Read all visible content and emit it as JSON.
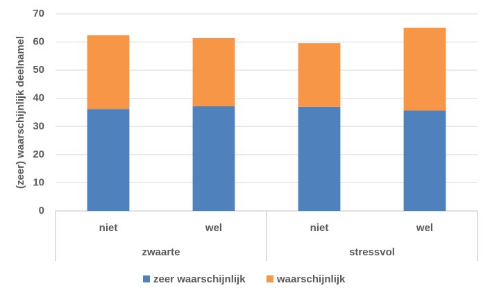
{
  "chart_data": {
    "type": "stacked_bar",
    "y_label": "(zeer) waarschijnlijk deelnamel",
    "groups": [
      "zwaarte",
      "stressvol"
    ],
    "categories": [
      "niet",
      "wel",
      "niet",
      "wel"
    ],
    "series": [
      {
        "name": "zeer waarschijnlijk",
        "color": "#4f81bd",
        "values": [
          36.2,
          37.2,
          37.0,
          35.7
        ]
      },
      {
        "name": "waarschijnlijk",
        "color": "#f79646",
        "values": [
          26.2,
          24.2,
          22.6,
          29.4
        ]
      }
    ],
    "ylim": [
      0,
      70
    ],
    "yticks": [
      0,
      10,
      20,
      30,
      40,
      50,
      60,
      70
    ],
    "grid": true,
    "legend": "bottom"
  }
}
